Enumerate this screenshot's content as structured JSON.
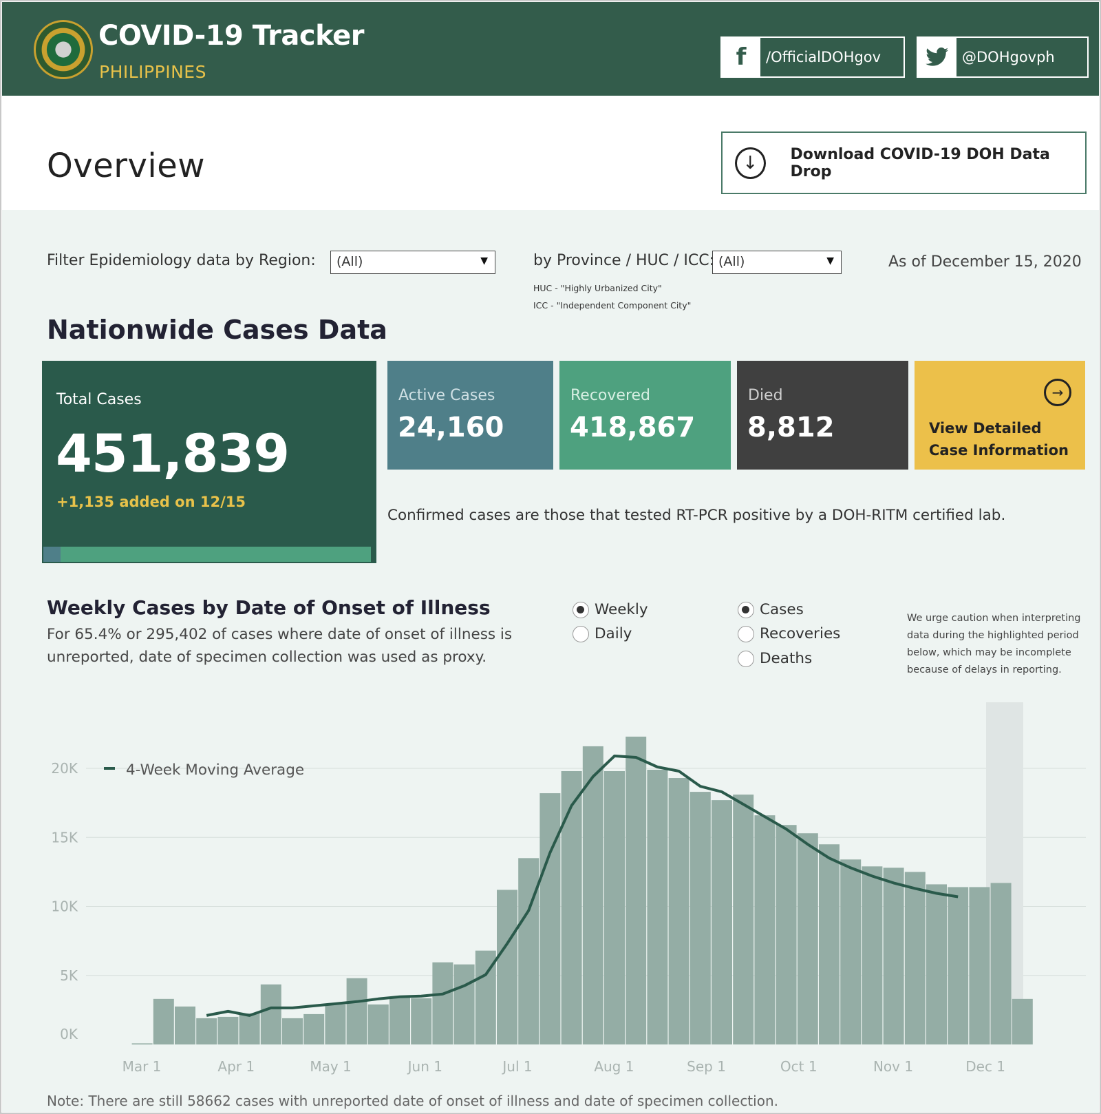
{
  "header": {
    "title": "COVID-19 Tracker",
    "subtitle": "PHILIPPINES",
    "facebook_label": "/OfficialDOHgov",
    "twitter_label": "@DOHgovph",
    "icons": {
      "seal": "doh-seal-logo",
      "facebook": "facebook-icon",
      "twitter": "twitter-icon"
    }
  },
  "overview": {
    "title": "Overview",
    "download_label": "Download COVID-19 DOH Data Drop"
  },
  "filters": {
    "region_label": "Filter Epidemiology data by Region:",
    "region_value": "(All)",
    "province_label": "by Province / HUC / ICC:",
    "province_value": "(All)",
    "huc_note": "HUC - \"Highly Urbanized City\"",
    "icc_note": "ICC - \"Independent Component City\"",
    "as_of": "As of December 15, 2020"
  },
  "nationwide": {
    "title": "Nationwide Cases Data",
    "total_label": "Total Cases",
    "total_value": "451,839",
    "added": "+1,135 added on 12/15",
    "active_share": 0.0535,
    "active_label": "Active Cases",
    "active_value": "24,160",
    "recovered_label": "Recovered",
    "recovered_value": "418,867",
    "died_label": "Died",
    "died_value": "8,812",
    "view_label": "View Detailed Case Information",
    "confirmed_note": "Confirmed cases are those that tested RT-PCR positive by a DOH-RITM certified lab.",
    "colors": {
      "total": "#2a5a4b",
      "active": "#4f7f89",
      "recovered": "#4ea17f",
      "died": "#404040",
      "view": "#ecc04a",
      "accent": "#e8c24a"
    }
  },
  "weekly": {
    "title": "Weekly Cases by Date of Onset of Illness",
    "description": "For 65.4% or 295,402 of cases where date of onset of illness is unreported, date of specimen collection was used as proxy.",
    "granularity_options": [
      "Weekly",
      "Daily"
    ],
    "granularity_selected": "Weekly",
    "measure_options": [
      "Cases",
      "Recoveries",
      "Deaths"
    ],
    "measure_selected": "Cases",
    "caution": "We urge caution when interpreting data during the highlighted period below, which may be incomplete because of delays in reporting.",
    "footnote": "Note: There are still 58662 cases with unreported date of onset of illness and date of specimen collection."
  },
  "chart_data": {
    "type": "bar",
    "title": "",
    "xlabel": "",
    "ylabel": "",
    "ylim": [
      0,
      23000
    ],
    "y_ticks": [
      0,
      5000,
      10000,
      15000,
      20000
    ],
    "y_tick_labels": [
      "0K",
      "5K",
      "10K",
      "15K",
      "20K"
    ],
    "x_tick_labels": [
      "Mar 1",
      "Apr 1",
      "May 1",
      "Jun 1",
      "Jul 1",
      "Aug 1",
      "Sep 1",
      "Oct 1",
      "Nov 1",
      "Dec 1"
    ],
    "grid": true,
    "legend": "top-left",
    "highlighted_period": "last 2 weeks",
    "series": [
      {
        "kind": "bar",
        "values": [
          80,
          3300,
          2750,
          1900,
          2000,
          2250,
          4350,
          1900,
          2200,
          2900,
          4800,
          2900,
          3400,
          3350,
          5950,
          5800,
          6800,
          11200,
          13500,
          18200,
          19800,
          21600,
          19800,
          22300,
          19900,
          19300,
          18300,
          17700,
          18100,
          16600,
          15900,
          15300,
          14500,
          13400,
          12900,
          12800,
          12500,
          11600,
          11400,
          11400,
          11700,
          3300
        ]
      },
      {
        "kind": "line",
        "name": "4-Week Moving Average",
        "values": [
          null,
          null,
          null,
          2100,
          2400,
          2100,
          2650,
          2650,
          2800,
          2950,
          3100,
          3300,
          3450,
          3500,
          3650,
          4250,
          5050,
          7300,
          9700,
          13900,
          17300,
          19400,
          20900,
          20800,
          20100,
          19800,
          18700,
          18300,
          17400,
          16500,
          15600,
          14500,
          13500,
          12800,
          12200,
          11700,
          11300,
          10950,
          10700,
          null,
          null,
          null
        ]
      }
    ]
  }
}
